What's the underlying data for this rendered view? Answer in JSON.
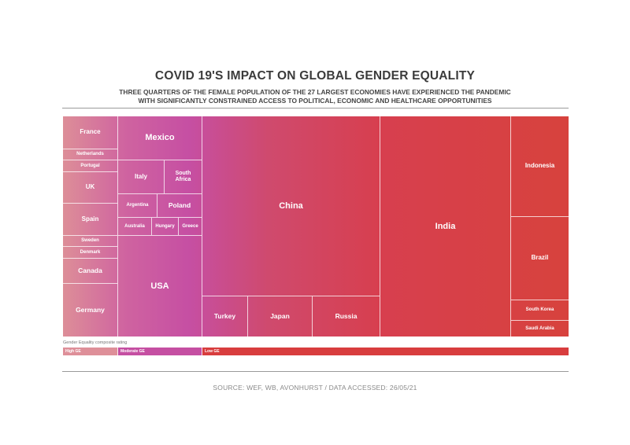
{
  "title": "COVID 19'S IMPACT ON GLOBAL GENDER EQUALITY",
  "subtitle_line1": "THREE QUARTERS OF THE FEMALE POPULATION OF THE 27 LARGEST ECONOMIES HAVE EXPERIENCED THE PANDEMIC",
  "subtitle_line2": "WITH SIGNIFICANTLY CONSTRAINED ACCESS TO POLITICAL, ECONOMIC AND HEALTHCARE OPPORTUNITIES",
  "legend": {
    "caption": "Gender Equality composite rating",
    "segments": [
      {
        "label": "High GE",
        "color": "#de8f99"
      },
      {
        "label": "Moderate GE",
        "color": "#c54fa2"
      },
      {
        "label": "Low GE",
        "color": "#d83d3e"
      }
    ]
  },
  "source": "SOURCE: WEF, WB, AVONHURST / DATA ACCESSED: 26/05/21",
  "colors": {
    "high_ge": "#de8f99",
    "moderate_ge": "#c54fa2",
    "low_ge": "#d83d3e"
  },
  "chart_data": {
    "type": "treemap",
    "groups": [
      {
        "name": "High GE",
        "countries": [
          "France",
          "Netherlands",
          "Portugal",
          "UK",
          "Spain",
          "Sweden",
          "Denmark",
          "Canada",
          "Germany"
        ]
      },
      {
        "name": "Moderate GE",
        "countries": [
          "Mexico",
          "Italy",
          "South Africa",
          "Argentina",
          "Poland",
          "Australia",
          "Hungary",
          "Greece",
          "USA"
        ]
      },
      {
        "name": "Low GE",
        "countries": [
          "China",
          "Turkey",
          "Japan",
          "Russia",
          "India",
          "Indonesia",
          "Brazil",
          "South Korea",
          "Saudi Arabia"
        ]
      }
    ],
    "cells": [
      {
        "label": "France"
      },
      {
        "label": "Netherlands"
      },
      {
        "label": "Portugal"
      },
      {
        "label": "UK"
      },
      {
        "label": "Spain"
      },
      {
        "label": "Sweden"
      },
      {
        "label": "Denmark"
      },
      {
        "label": "Canada"
      },
      {
        "label": "Germany"
      },
      {
        "label": "Mexico"
      },
      {
        "label": "Italy"
      },
      {
        "label": "South Africa"
      },
      {
        "label": "Argentina"
      },
      {
        "label": "Poland"
      },
      {
        "label": "Australia"
      },
      {
        "label": "Hungary"
      },
      {
        "label": "Greece"
      },
      {
        "label": "USA"
      },
      {
        "label": "China"
      },
      {
        "label": "Turkey"
      },
      {
        "label": "Japan"
      },
      {
        "label": "Russia"
      },
      {
        "label": "India"
      },
      {
        "label": "Indonesia"
      },
      {
        "label": "Brazil"
      },
      {
        "label": "South Korea"
      },
      {
        "label": "Saudi Arabia"
      }
    ]
  }
}
